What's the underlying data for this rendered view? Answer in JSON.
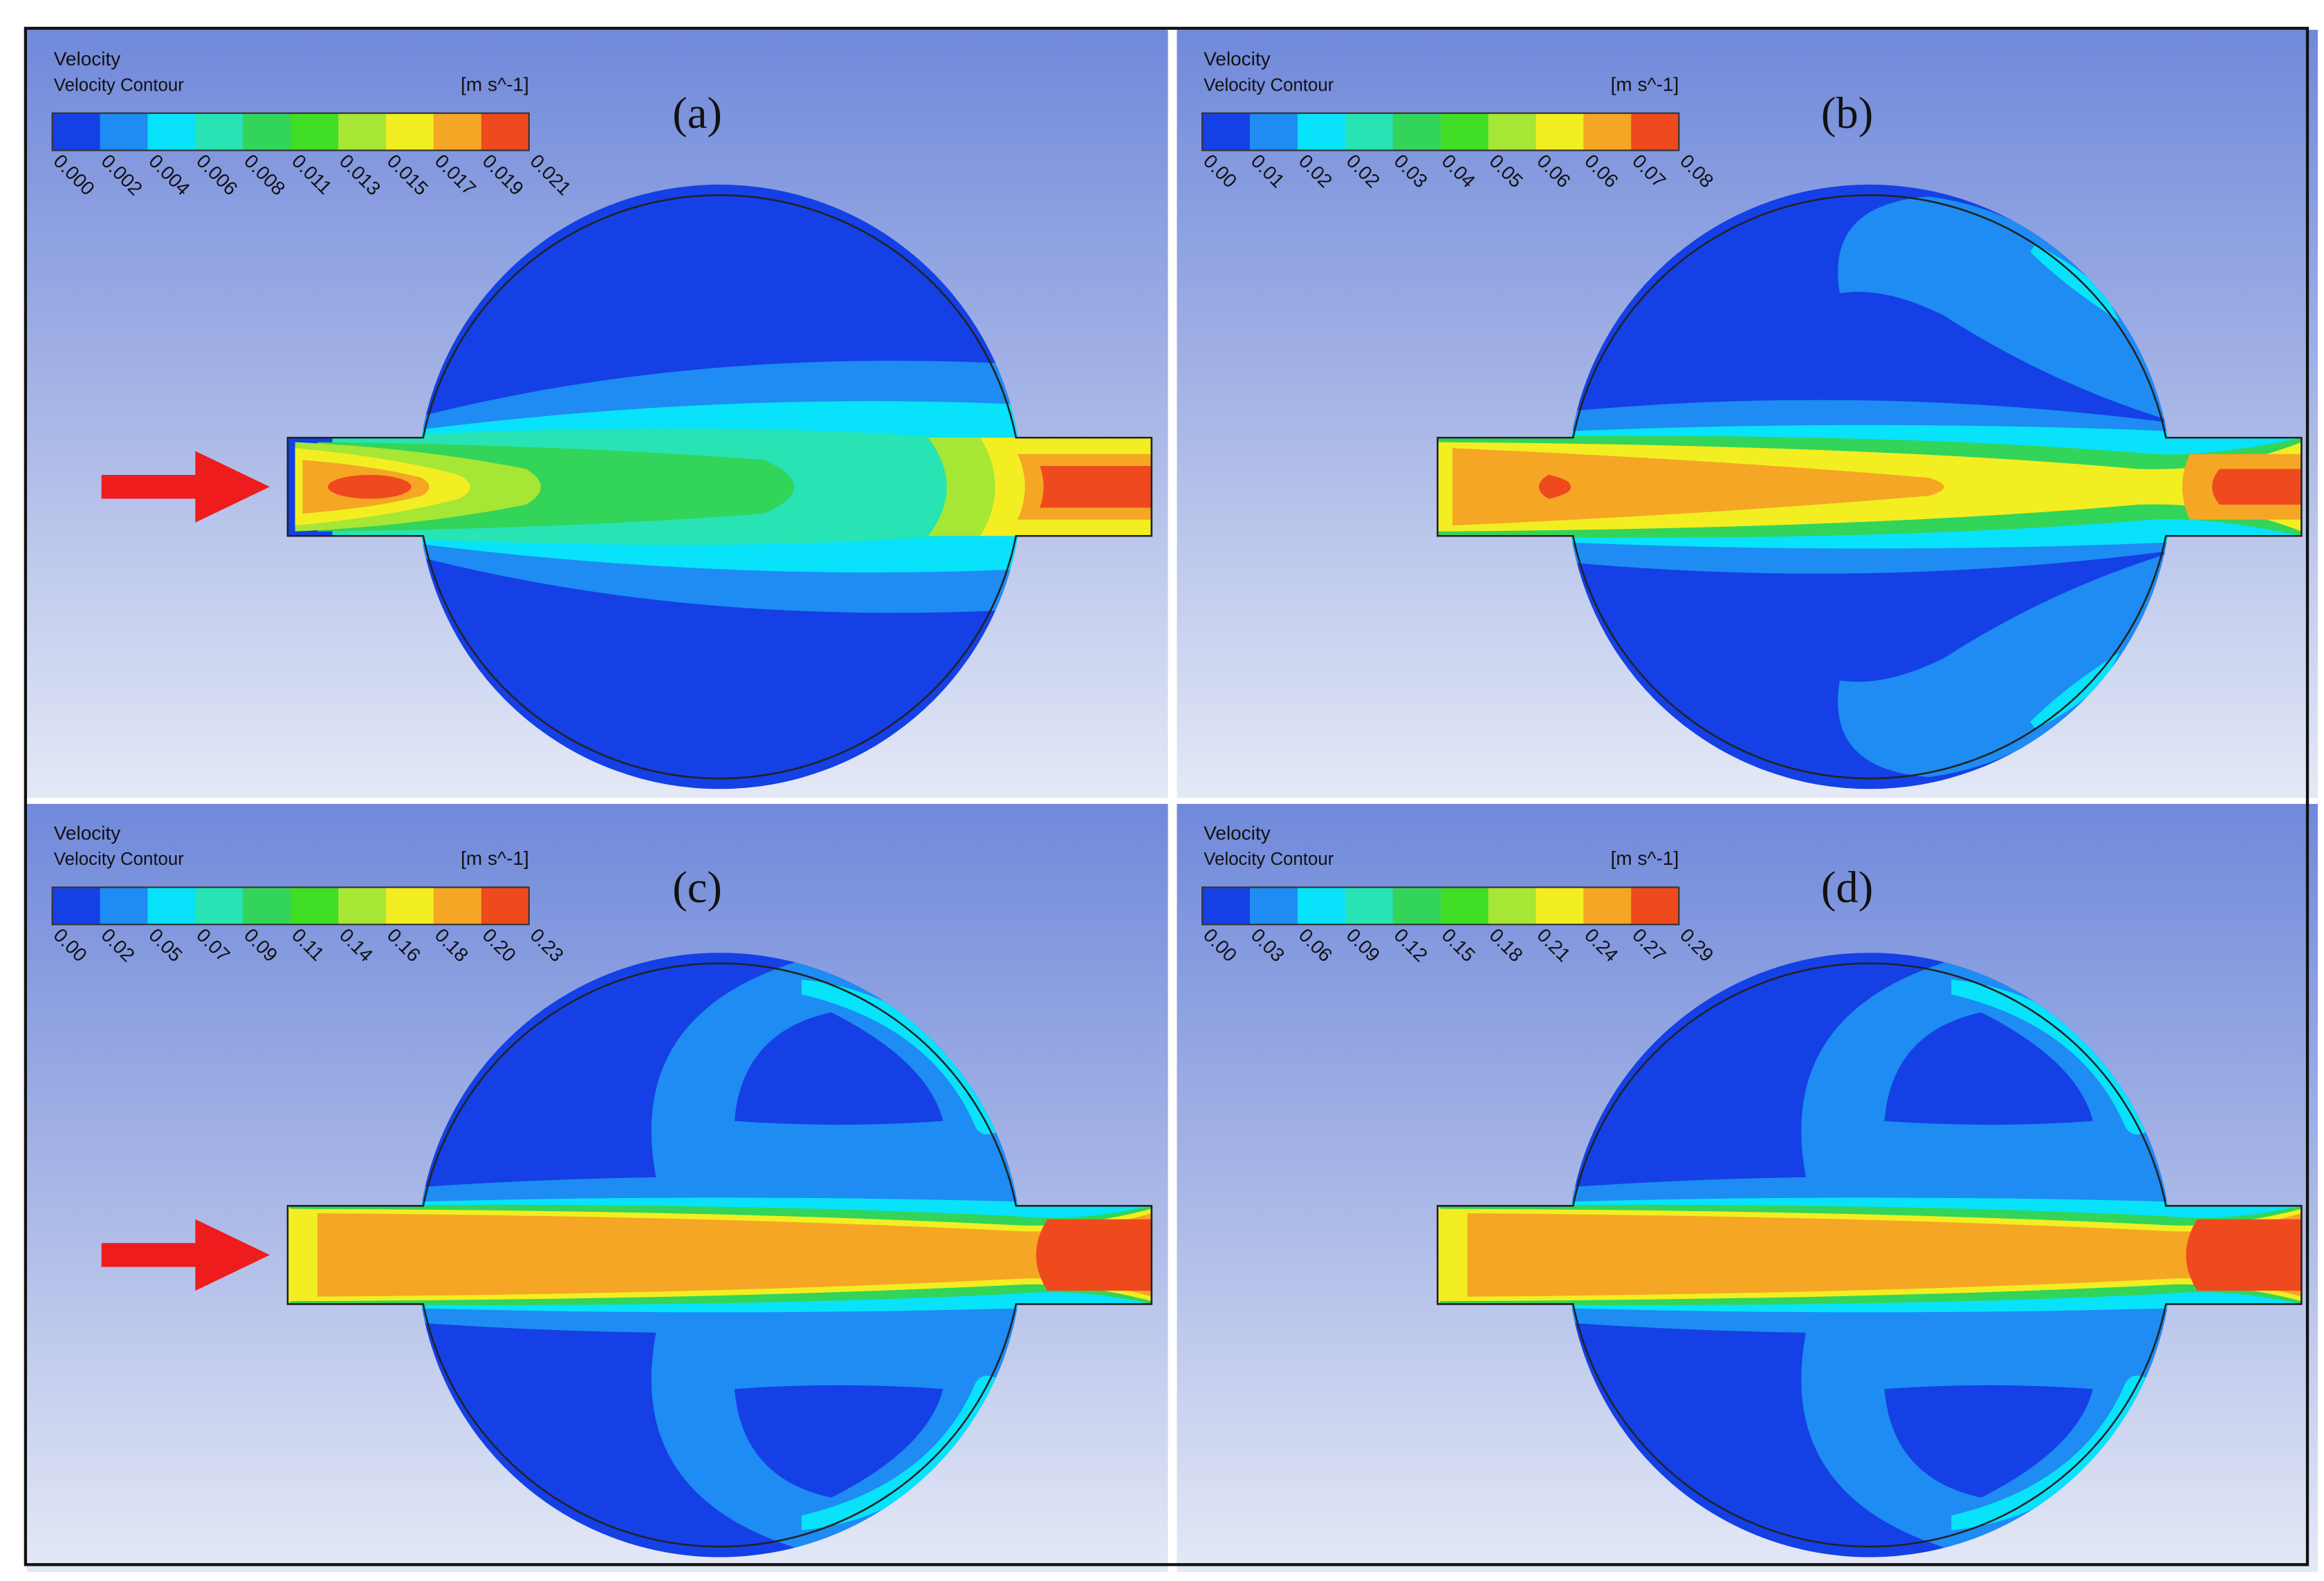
{
  "panels": [
    {
      "label": "(a)",
      "legend": {
        "title": "Velocity",
        "subtitle": "Velocity Contour",
        "unit": "[m s^-1]",
        "ticks": [
          "0.000",
          "0.002",
          "0.004",
          "0.006",
          "0.008",
          "0.011",
          "0.013",
          "0.015",
          "0.017",
          "0.019",
          "0.021"
        ]
      }
    },
    {
      "label": "(b)",
      "legend": {
        "title": "Velocity",
        "subtitle": "Velocity Contour",
        "unit": "[m s^-1]",
        "ticks": [
          "0.00",
          "0.01",
          "0.02",
          "0.02",
          "0.03",
          "0.04",
          "0.05",
          "0.06",
          "0.06",
          "0.07",
          "0.08"
        ]
      }
    },
    {
      "label": "(c)",
      "legend": {
        "title": "Velocity",
        "subtitle": "Velocity Contour",
        "unit": "[m s^-1]",
        "ticks": [
          "0.00",
          "0.02",
          "0.05",
          "0.07",
          "0.09",
          "0.11",
          "0.14",
          "0.16",
          "0.18",
          "0.20",
          "0.23"
        ]
      }
    },
    {
      "label": "(d)",
      "legend": {
        "title": "Velocity",
        "subtitle": "Velocity Contour",
        "unit": "[m s^-1]",
        "ticks": [
          "0.00",
          "0.03",
          "0.06",
          "0.09",
          "0.12",
          "0.15",
          "0.18",
          "0.21",
          "0.24",
          "0.27",
          "0.29"
        ]
      }
    }
  ]
}
